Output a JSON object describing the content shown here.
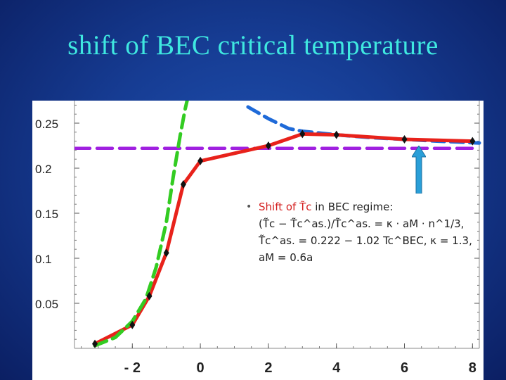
{
  "slide": {
    "title": "shift of BEC critical temperature"
  },
  "annotation": {
    "bullet": "•",
    "heading_red": "Shift of T̃c",
    "heading_rest": " in BEC regime:",
    "line1": "(T̃c − T̃c^as.)/T̃c^as. = κ · aM · n^1/3,",
    "line2": "T̃c^as. = 0.222 − 1.02 Tc^BEC, κ = 1.3,",
    "line3": "aM = 0.6a"
  },
  "colors": {
    "background": "#163c93",
    "title": "#3fe8e0",
    "data_line": "#e8221b",
    "green_dashed": "#33cc22",
    "blue_dashed": "#1f6ad8",
    "purple_dashed": "#a020e0",
    "arrow": "#2a9fd8"
  },
  "chart_data": {
    "type": "line",
    "xlim": [
      -3.7,
      8.2
    ],
    "ylim": [
      0,
      0.275
    ],
    "x_ticks": [
      -2,
      0,
      2,
      4,
      6,
      8
    ],
    "x_tick_labels": [
      "- 2",
      "0",
      "2",
      "4",
      "6",
      "8"
    ],
    "y_ticks": [
      0.05,
      0.1,
      0.15,
      0.2,
      0.25
    ],
    "y_tick_labels": [
      "0.05",
      "0.1",
      "0.15",
      "0.2",
      "0.25"
    ],
    "grid": false,
    "series": [
      {
        "style": "solid-red-with-diamonds",
        "x": [
          -3.1,
          -2.0,
          -1.5,
          -1.0,
          -0.5,
          0.0,
          2.0,
          3.0,
          4.0,
          6.0,
          8.0
        ],
        "y": [
          0.005,
          0.026,
          0.058,
          0.106,
          0.182,
          0.208,
          0.225,
          0.238,
          0.237,
          0.232,
          0.23
        ]
      },
      {
        "style": "green-dashed",
        "x": [
          -3.1,
          -2.5,
          -2.0,
          -1.6,
          -1.3,
          -1.0,
          -0.8,
          -0.6,
          -0.45,
          -0.3
        ],
        "y": [
          0.003,
          0.012,
          0.03,
          0.055,
          0.09,
          0.14,
          0.19,
          0.235,
          0.265,
          0.29
        ]
      },
      {
        "style": "blue-dashed",
        "x": [
          1.4,
          2.0,
          2.6,
          3.0,
          4.0,
          5.0,
          6.0,
          7.0,
          8.2
        ],
        "y": [
          0.268,
          0.255,
          0.244,
          0.241,
          0.237,
          0.234,
          0.232,
          0.23,
          0.228
        ]
      },
      {
        "style": "purple-dashed",
        "x": [
          -3.7,
          8.2
        ],
        "y": [
          0.222,
          0.222
        ]
      }
    ]
  }
}
